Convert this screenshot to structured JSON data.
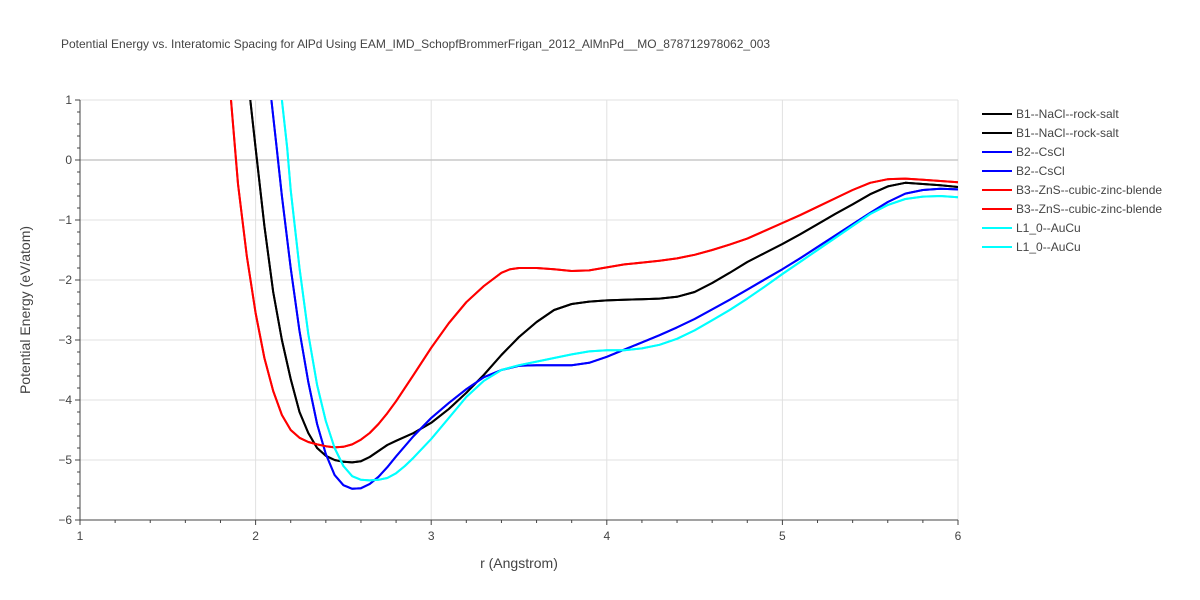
{
  "chart_data": {
    "type": "line",
    "title": "Potential Energy vs. Interatomic Spacing for AlPd Using EAM_IMD_SchopfBrommerFrigan_2012_AlMnPd__MO_878712978062_003",
    "xlabel": "r (Angstrom)",
    "ylabel": "Potential Energy (eV/atom)",
    "xlim": [
      1,
      6
    ],
    "ylim": [
      -6,
      1
    ],
    "xticks": [
      "1",
      "2",
      "3",
      "4",
      "5",
      "6"
    ],
    "yticks": [
      "−6",
      "−5",
      "−4",
      "−3",
      "−2",
      "−1",
      "0",
      "1"
    ],
    "grid": true,
    "legend_position": "right",
    "series": [
      {
        "name": "B1--NaCl--rock-salt",
        "color": "#000000",
        "x": [
          1.97,
          2.0,
          2.05,
          2.1,
          2.15,
          2.2,
          2.25,
          2.3,
          2.35,
          2.4,
          2.45,
          2.5,
          2.55,
          2.6,
          2.65,
          2.7,
          2.75,
          2.8,
          2.9,
          3.0,
          3.1,
          3.2,
          3.3,
          3.4,
          3.5,
          3.6,
          3.7,
          3.8,
          3.9,
          4.0,
          4.1,
          4.2,
          4.3,
          4.4,
          4.5,
          4.6,
          4.7,
          4.8,
          4.9,
          5.0,
          5.1,
          5.2,
          5.3,
          5.4,
          5.5,
          5.6,
          5.7,
          5.8,
          5.9,
          6.0
        ],
        "y": [
          1.0,
          0.2,
          -1.1,
          -2.2,
          -3.0,
          -3.65,
          -4.2,
          -4.55,
          -4.8,
          -4.93,
          -5.0,
          -5.03,
          -5.04,
          -5.02,
          -4.95,
          -4.85,
          -4.75,
          -4.68,
          -4.55,
          -4.38,
          -4.15,
          -3.88,
          -3.58,
          -3.25,
          -2.95,
          -2.7,
          -2.5,
          -2.4,
          -2.36,
          -2.34,
          -2.33,
          -2.32,
          -2.31,
          -2.28,
          -2.2,
          -2.05,
          -1.88,
          -1.7,
          -1.55,
          -1.4,
          -1.24,
          -1.07,
          -0.9,
          -0.74,
          -0.57,
          -0.44,
          -0.38,
          -0.4,
          -0.42,
          -0.45
        ]
      },
      {
        "name": "B1--NaCl--rock-salt",
        "color": "#000000",
        "x": [
          1.97,
          2.0,
          2.05,
          2.1,
          2.15,
          2.2,
          2.25,
          2.3,
          2.35,
          2.4,
          2.45,
          2.5,
          2.55,
          2.6,
          2.65,
          2.7,
          2.75,
          2.8,
          2.9,
          3.0,
          3.1,
          3.2,
          3.3,
          3.4,
          3.5,
          3.6,
          3.7,
          3.8,
          3.9,
          4.0,
          4.1,
          4.2,
          4.3,
          4.4,
          4.5,
          4.6,
          4.7,
          4.8,
          4.9,
          5.0,
          5.1,
          5.2,
          5.3,
          5.4,
          5.5,
          5.6,
          5.7,
          5.8,
          5.9,
          6.0
        ],
        "y": [
          1.0,
          0.2,
          -1.1,
          -2.2,
          -3.0,
          -3.65,
          -4.2,
          -4.55,
          -4.8,
          -4.93,
          -5.0,
          -5.03,
          -5.04,
          -5.02,
          -4.95,
          -4.85,
          -4.75,
          -4.68,
          -4.55,
          -4.38,
          -4.15,
          -3.88,
          -3.58,
          -3.25,
          -2.95,
          -2.7,
          -2.5,
          -2.4,
          -2.36,
          -2.34,
          -2.33,
          -2.32,
          -2.31,
          -2.28,
          -2.2,
          -2.05,
          -1.88,
          -1.7,
          -1.55,
          -1.4,
          -1.24,
          -1.07,
          -0.9,
          -0.74,
          -0.57,
          -0.44,
          -0.38,
          -0.4,
          -0.42,
          -0.45
        ]
      },
      {
        "name": "B2--CsCl",
        "color": "#0000ff",
        "x": [
          2.09,
          2.12,
          2.15,
          2.2,
          2.25,
          2.3,
          2.35,
          2.4,
          2.45,
          2.5,
          2.55,
          2.6,
          2.65,
          2.7,
          2.75,
          2.8,
          2.9,
          3.0,
          3.1,
          3.2,
          3.3,
          3.4,
          3.5,
          3.6,
          3.7,
          3.8,
          3.9,
          4.0,
          4.1,
          4.2,
          4.3,
          4.4,
          4.5,
          4.6,
          4.7,
          4.8,
          4.9,
          5.0,
          5.1,
          5.2,
          5.3,
          5.4,
          5.5,
          5.6,
          5.7,
          5.8,
          5.9,
          6.0
        ],
        "y": [
          1.0,
          0.2,
          -0.6,
          -1.8,
          -2.85,
          -3.7,
          -4.4,
          -4.9,
          -5.25,
          -5.42,
          -5.48,
          -5.47,
          -5.4,
          -5.28,
          -5.12,
          -4.94,
          -4.6,
          -4.3,
          -4.05,
          -3.82,
          -3.62,
          -3.5,
          -3.43,
          -3.42,
          -3.42,
          -3.42,
          -3.38,
          -3.28,
          -3.16,
          -3.04,
          -2.92,
          -2.79,
          -2.65,
          -2.49,
          -2.33,
          -2.16,
          -1.99,
          -1.82,
          -1.64,
          -1.45,
          -1.26,
          -1.07,
          -0.88,
          -0.7,
          -0.56,
          -0.5,
          -0.48,
          -0.49
        ]
      },
      {
        "name": "B2--CsCl",
        "color": "#0000ff",
        "x": [
          2.09,
          2.12,
          2.15,
          2.2,
          2.25,
          2.3,
          2.35,
          2.4,
          2.45,
          2.5,
          2.55,
          2.6,
          2.65,
          2.7,
          2.75,
          2.8,
          2.9,
          3.0,
          3.1,
          3.2,
          3.3,
          3.4,
          3.5,
          3.6,
          3.7,
          3.8,
          3.9,
          4.0,
          4.1,
          4.2,
          4.3,
          4.4,
          4.5,
          4.6,
          4.7,
          4.8,
          4.9,
          5.0,
          5.1,
          5.2,
          5.3,
          5.4,
          5.5,
          5.6,
          5.7,
          5.8,
          5.9,
          6.0
        ],
        "y": [
          1.0,
          0.2,
          -0.6,
          -1.8,
          -2.85,
          -3.7,
          -4.4,
          -4.9,
          -5.25,
          -5.42,
          -5.48,
          -5.47,
          -5.4,
          -5.28,
          -5.12,
          -4.94,
          -4.6,
          -4.3,
          -4.05,
          -3.82,
          -3.62,
          -3.5,
          -3.43,
          -3.42,
          -3.42,
          -3.42,
          -3.38,
          -3.28,
          -3.16,
          -3.04,
          -2.92,
          -2.79,
          -2.65,
          -2.49,
          -2.33,
          -2.16,
          -1.99,
          -1.82,
          -1.64,
          -1.45,
          -1.26,
          -1.07,
          -0.88,
          -0.7,
          -0.56,
          -0.5,
          -0.48,
          -0.49
        ]
      },
      {
        "name": "B3--ZnS--cubic-zinc-blende",
        "color": "#ff0000",
        "x": [
          1.86,
          1.88,
          1.9,
          1.95,
          2.0,
          2.05,
          2.1,
          2.15,
          2.2,
          2.25,
          2.3,
          2.35,
          2.4,
          2.45,
          2.5,
          2.55,
          2.6,
          2.65,
          2.7,
          2.75,
          2.8,
          2.9,
          3.0,
          3.1,
          3.2,
          3.3,
          3.4,
          3.45,
          3.5,
          3.6,
          3.7,
          3.8,
          3.9,
          4.0,
          4.1,
          4.2,
          4.3,
          4.4,
          4.5,
          4.6,
          4.7,
          4.8,
          4.9,
          5.0,
          5.1,
          5.2,
          5.3,
          5.4,
          5.5,
          5.6,
          5.7,
          5.8,
          5.9,
          6.0
        ],
        "y": [
          1.0,
          0.3,
          -0.4,
          -1.6,
          -2.55,
          -3.3,
          -3.85,
          -4.25,
          -4.5,
          -4.63,
          -4.7,
          -4.74,
          -4.77,
          -4.79,
          -4.78,
          -4.74,
          -4.66,
          -4.55,
          -4.4,
          -4.22,
          -4.02,
          -3.58,
          -3.13,
          -2.72,
          -2.37,
          -2.1,
          -1.88,
          -1.82,
          -1.8,
          -1.8,
          -1.82,
          -1.85,
          -1.84,
          -1.79,
          -1.74,
          -1.71,
          -1.68,
          -1.64,
          -1.58,
          -1.5,
          -1.41,
          -1.31,
          -1.18,
          -1.05,
          -0.92,
          -0.78,
          -0.64,
          -0.5,
          -0.38,
          -0.32,
          -0.31,
          -0.33,
          -0.35,
          -0.37
        ]
      },
      {
        "name": "B3--ZnS--cubic-zinc-blende",
        "color": "#ff0000",
        "x": [
          1.86,
          1.88,
          1.9,
          1.95,
          2.0,
          2.05,
          2.1,
          2.15,
          2.2,
          2.25,
          2.3,
          2.35,
          2.4,
          2.45,
          2.5,
          2.55,
          2.6,
          2.65,
          2.7,
          2.75,
          2.8,
          2.9,
          3.0,
          3.1,
          3.2,
          3.3,
          3.4,
          3.45,
          3.5,
          3.6,
          3.7,
          3.8,
          3.9,
          4.0,
          4.1,
          4.2,
          4.3,
          4.4,
          4.5,
          4.6,
          4.7,
          4.8,
          4.9,
          5.0,
          5.1,
          5.2,
          5.3,
          5.4,
          5.5,
          5.6,
          5.7,
          5.8,
          5.9,
          6.0
        ],
        "y": [
          1.0,
          0.3,
          -0.4,
          -1.6,
          -2.55,
          -3.3,
          -3.85,
          -4.25,
          -4.5,
          -4.63,
          -4.7,
          -4.74,
          -4.77,
          -4.79,
          -4.78,
          -4.74,
          -4.66,
          -4.55,
          -4.4,
          -4.22,
          -4.02,
          -3.58,
          -3.13,
          -2.72,
          -2.37,
          -2.1,
          -1.88,
          -1.82,
          -1.8,
          -1.8,
          -1.82,
          -1.85,
          -1.84,
          -1.79,
          -1.74,
          -1.71,
          -1.68,
          -1.64,
          -1.58,
          -1.5,
          -1.41,
          -1.31,
          -1.18,
          -1.05,
          -0.92,
          -0.78,
          -0.64,
          -0.5,
          -0.38,
          -0.32,
          -0.31,
          -0.33,
          -0.35,
          -0.37
        ]
      },
      {
        "name": "L1_0--AuCu",
        "color": "#00ffff",
        "x": [
          2.15,
          2.18,
          2.2,
          2.25,
          2.3,
          2.35,
          2.4,
          2.45,
          2.5,
          2.55,
          2.6,
          2.65,
          2.7,
          2.75,
          2.8,
          2.85,
          2.9,
          3.0,
          3.1,
          3.2,
          3.3,
          3.4,
          3.5,
          3.6,
          3.7,
          3.8,
          3.9,
          4.0,
          4.1,
          4.2,
          4.3,
          4.4,
          4.5,
          4.6,
          4.7,
          4.8,
          4.9,
          5.0,
          5.1,
          5.2,
          5.3,
          5.4,
          5.5,
          5.6,
          5.7,
          5.8,
          5.9,
          6.0
        ],
        "y": [
          1.0,
          0.2,
          -0.5,
          -1.8,
          -2.9,
          -3.75,
          -4.35,
          -4.8,
          -5.1,
          -5.27,
          -5.33,
          -5.34,
          -5.33,
          -5.3,
          -5.22,
          -5.1,
          -4.96,
          -4.65,
          -4.3,
          -3.95,
          -3.68,
          -3.5,
          -3.42,
          -3.36,
          -3.3,
          -3.24,
          -3.19,
          -3.17,
          -3.17,
          -3.14,
          -3.08,
          -2.98,
          -2.84,
          -2.67,
          -2.5,
          -2.31,
          -2.11,
          -1.9,
          -1.7,
          -1.5,
          -1.3,
          -1.1,
          -0.9,
          -0.75,
          -0.65,
          -0.61,
          -0.6,
          -0.62
        ]
      },
      {
        "name": "L1_0--AuCu",
        "color": "#00ffff",
        "x": [
          2.15,
          2.18,
          2.2,
          2.25,
          2.3,
          2.35,
          2.4,
          2.45,
          2.5,
          2.55,
          2.6,
          2.65,
          2.7,
          2.75,
          2.8,
          2.85,
          2.9,
          3.0,
          3.1,
          3.2,
          3.3,
          3.4,
          3.5,
          3.6,
          3.7,
          3.8,
          3.9,
          4.0,
          4.1,
          4.2,
          4.3,
          4.4,
          4.5,
          4.6,
          4.7,
          4.8,
          4.9,
          5.0,
          5.1,
          5.2,
          5.3,
          5.4,
          5.5,
          5.6,
          5.7,
          5.8,
          5.9,
          6.0
        ],
        "y": [
          1.0,
          0.2,
          -0.5,
          -1.8,
          -2.9,
          -3.75,
          -4.35,
          -4.8,
          -5.1,
          -5.27,
          -5.33,
          -5.34,
          -5.33,
          -5.3,
          -5.22,
          -5.1,
          -4.96,
          -4.65,
          -4.3,
          -3.95,
          -3.68,
          -3.5,
          -3.42,
          -3.36,
          -3.3,
          -3.24,
          -3.19,
          -3.17,
          -3.17,
          -3.14,
          -3.08,
          -2.98,
          -2.84,
          -2.67,
          -2.5,
          -2.31,
          -2.11,
          -1.9,
          -1.7,
          -1.5,
          -1.3,
          -1.1,
          -0.9,
          -0.75,
          -0.65,
          -0.61,
          -0.6,
          -0.62
        ]
      }
    ]
  }
}
